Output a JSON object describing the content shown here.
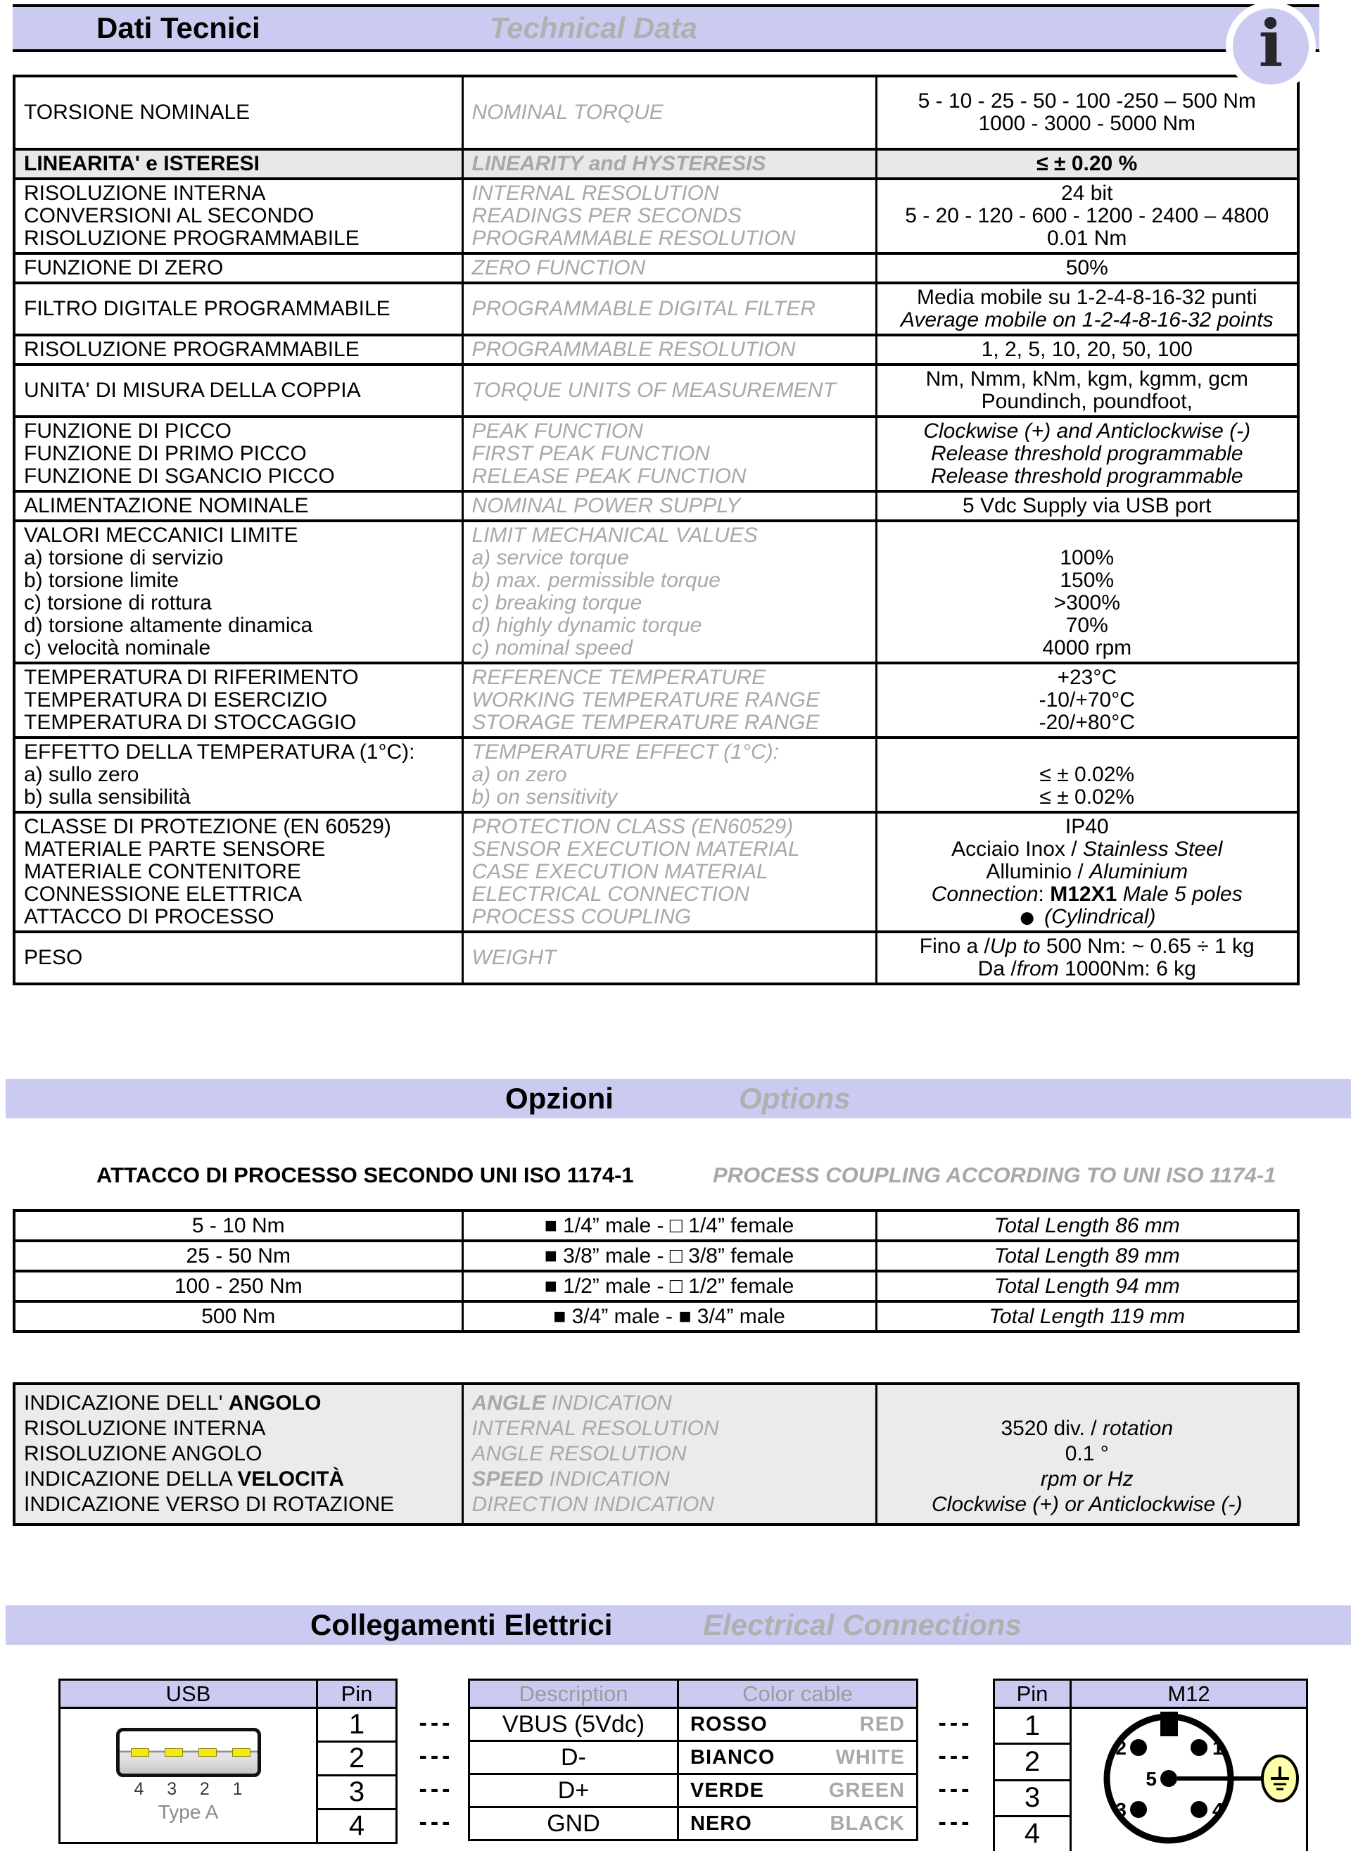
{
  "banner1": {
    "it": "Dati Tecnici",
    "en": "Technical Data"
  },
  "info_icon": {
    "glyph": "i"
  },
  "colors": {
    "accent_lavender": "#cbcbf1",
    "gray_text": "#a8a8a8",
    "row_gray": "#e8e8e8",
    "contact_yellow": "#f3ea0f",
    "ground_yellow": "#ffffa8"
  },
  "main_table": {
    "rows": [
      {
        "va": "m",
        "h": 104,
        "it": [
          "TORSIONE NOMINALE"
        ],
        "en": [
          "NOMINAL TORQUE"
        ],
        "val": [
          "5 - 10 - 25 - 50 - 100 -250 – 500 Nm",
          "1000 - 3000 - 5000 Nm"
        ]
      },
      {
        "va": "m",
        "bg": true,
        "it": [
          [
            {
              "t": "LINEARITA' e ISTERESI",
              "s": "b"
            }
          ]
        ],
        "en": [
          [
            {
              "t": "LINEARITY and HYSTERESIS",
              "s": "b"
            }
          ]
        ],
        "val": [
          [
            {
              "t": "≤ ± 0.20 %",
              "s": "b"
            }
          ]
        ]
      },
      {
        "va": "t",
        "it": [
          "RISOLUZIONE INTERNA",
          "CONVERSIONI AL SECONDO",
          "RISOLUZIONE PROGRAMMABILE"
        ],
        "en": [
          "INTERNAL RESOLUTION",
          "READINGS PER SECONDS",
          "PROGRAMMABLE RESOLUTION"
        ],
        "val": [
          "24 bit",
          "5 - 20 - 120 - 600 - 1200 - 2400 – 4800",
          "0.01 Nm"
        ]
      },
      {
        "va": "m",
        "it": [
          "FUNZIONE DI ZERO"
        ],
        "en": [
          "ZERO FUNCTION"
        ],
        "val": [
          "50%"
        ]
      },
      {
        "va": "m",
        "it": [
          "FILTRO DIGITALE PROGRAMMABILE"
        ],
        "en": [
          "PROGRAMMABLE DIGITAL FILTER"
        ],
        "val": [
          "Media mobile su 1-2-4-8-16-32 punti",
          [
            {
              "t": "Average mobile on 1-2-4-8-16-32 points",
              "s": "i"
            }
          ]
        ]
      },
      {
        "va": "m",
        "it": [
          "RISOLUZIONE PROGRAMMABILE"
        ],
        "en": [
          "PROGRAMMABLE RESOLUTION"
        ],
        "val": [
          "1, 2, 5, 10, 20, 50, 100"
        ]
      },
      {
        "va": "m",
        "it": [
          "UNITA' DI MISURA DELLA COPPIA"
        ],
        "en": [
          "TORQUE UNITS OF MEASUREMENT"
        ],
        "val": [
          "Nm, Nmm, kNm, kgm, kgmm, gcm",
          "Poundinch, poundfoot,"
        ]
      },
      {
        "va": "t",
        "it": [
          "FUNZIONE DI PICCO",
          "FUNZIONE DI PRIMO PICCO",
          "FUNZIONE DI SGANCIO PICCO"
        ],
        "en": [
          "PEAK FUNCTION",
          "FIRST PEAK FUNCTION",
          "RELEASE PEAK FUNCTION"
        ],
        "val": [
          [
            {
              "t": "Clockwise (+) and Anticlockwise (-)",
              "s": "i"
            }
          ],
          [
            {
              "t": "Release threshold programmable",
              "s": "i"
            }
          ],
          [
            {
              "t": "Release threshold programmable",
              "s": "i"
            }
          ]
        ]
      },
      {
        "va": "m",
        "it": [
          "ALIMENTAZIONE NOMINALE"
        ],
        "en": [
          "NOMINAL POWER SUPPLY"
        ],
        "val": [
          "5 Vdc Supply via USB port"
        ]
      },
      {
        "va": "t",
        "it": [
          "VALORI MECCANICI LIMITE",
          "a) torsione di servizio",
          "b) torsione limite",
          "c) torsione di rottura",
          "d) torsione altamente dinamica",
          "c) velocità nominale"
        ],
        "en": [
          "LIMIT MECHANICAL VALUES",
          "a) service torque",
          "b) max. permissible torque",
          "c) breaking torque",
          "d) highly dynamic torque",
          "c) nominal speed"
        ],
        "val": [
          "",
          "100%",
          "150%",
          ">300%",
          "70%",
          "4000 rpm"
        ]
      },
      {
        "va": "t",
        "it": [
          "TEMPERATURA DI RIFERIMENTO",
          "TEMPERATURA DI ESERCIZIO",
          "TEMPERATURA DI STOCCAGGIO"
        ],
        "en": [
          "REFERENCE TEMPERATURE",
          "WORKING TEMPERATURE RANGE",
          "STORAGE TEMPERATURE RANGE"
        ],
        "val": [
          "+23°C",
          "-10/+70°C",
          "-20/+80°C"
        ]
      },
      {
        "va": "t",
        "it": [
          "EFFETTO DELLA TEMPERATURA (1°C):",
          "a) sullo zero",
          "b) sulla sensibilità"
        ],
        "en": [
          "TEMPERATURE EFFECT (1°C):",
          "a) on zero",
          "b) on sensitivity"
        ],
        "val": [
          "",
          "≤ ± 0.02%",
          "≤ ± 0.02%"
        ]
      },
      {
        "va": "t",
        "it": [
          "CLASSE DI PROTEZIONE (EN 60529)",
          "MATERIALE PARTE SENSORE",
          "MATERIALE CONTENITORE",
          "CONNESSIONE ELETTRICA",
          "ATTACCO DI PROCESSO"
        ],
        "en": [
          "PROTECTION CLASS (EN60529)",
          "SENSOR EXECUTION MATERIAL",
          "CASE EXECUTION MATERIAL",
          "ELECTRICAL CONNECTION",
          "PROCESS COUPLING"
        ],
        "val": [
          "IP40",
          [
            {
              "t": "Acciaio Inox / "
            },
            {
              "t": "Stainless Steel",
              "s": "i"
            }
          ],
          [
            {
              "t": "Alluminio / "
            },
            {
              "t": "Aluminium",
              "s": "i"
            }
          ],
          [
            {
              "t": "Connection",
              "s": "i"
            },
            {
              "t": ": "
            },
            {
              "t": "M12X1",
              "s": "b"
            },
            {
              "t": " "
            },
            {
              "t": "Male 5 poles",
              "s": "i"
            }
          ],
          [
            {
              "t": "● ",
              "s": "d"
            },
            {
              "t": "(Cylindrical)",
              "s": "i"
            }
          ]
        ]
      },
      {
        "va": "t",
        "it": [
          "PESO"
        ],
        "en": [
          "WEIGHT"
        ],
        "val": [
          [
            {
              "t": "Fino a /"
            },
            {
              "t": "Up to",
              "s": "i"
            },
            {
              "t": " 500 Nm: ~ 0.65 ÷ 1 kg"
            }
          ],
          [
            {
              "t": "Da /"
            },
            {
              "t": "from",
              "s": "i"
            },
            {
              "t": " 1000Nm: 6 kg"
            }
          ]
        ]
      }
    ]
  },
  "options_banner": {
    "it": "Opzioni",
    "en": "Options"
  },
  "coupling_heading": {
    "it": "ATTACCO DI PROCESSO SECONDO UNI ISO 1174-1",
    "en": "PROCESS COUPLING ACCORDING TO UNI ISO 1174-1"
  },
  "coupling_table": {
    "rows": [
      {
        "range": "5 - 10 Nm",
        "fitting": "■ 1/4” male - □ 1/4” female",
        "length": "Total Length 86 mm"
      },
      {
        "range": "25 - 50 Nm",
        "fitting": "■ 3/8” male - □ 3/8” female",
        "length": "Total Length 89 mm"
      },
      {
        "range": "100 - 250 Nm",
        "fitting": "■ 1/2” male - □ 1/2” female",
        "length": "Total Length 94 mm"
      },
      {
        "range": "500 Nm",
        "fitting": "■ 3/4” male - ■ 3/4” male",
        "length": "Total Length 119 mm"
      }
    ]
  },
  "angle_table": {
    "rows": [
      {
        "va": "t",
        "it": [
          [
            {
              "t": "INDICAZIONE DELL' "
            },
            {
              "t": "ANGOLO",
              "s": "b"
            }
          ],
          "RISOLUZIONE INTERNA",
          "RISOLUZIONE ANGOLO",
          [
            {
              "t": "INDICAZIONE DELLA "
            },
            {
              "t": "VELOCITÀ",
              "s": "b"
            }
          ],
          "INDICAZIONE VERSO DI ROTAZIONE"
        ],
        "en": [
          [
            {
              "t": "ANGLE",
              "s": "b"
            },
            {
              "t": " INDICATION"
            }
          ],
          "INTERNAL RESOLUTION",
          "ANGLE RESOLUTION",
          [
            {
              "t": "SPEED",
              "s": "b"
            },
            {
              "t": " INDICATION"
            }
          ],
          "DIRECTION INDICATION"
        ],
        "val": [
          "",
          [
            {
              "t": "3520 div. / "
            },
            {
              "t": "rotation",
              "s": "i"
            }
          ],
          "0.1 °",
          [
            {
              "t": "rpm or Hz",
              "s": "i"
            }
          ],
          [
            {
              "t": "Clockwise (+) or Anticlockwise (-)",
              "s": "i"
            }
          ]
        ]
      }
    ]
  },
  "connections_banner": {
    "it": "Collegamenti Elettrici",
    "en": "Electrical Connections"
  },
  "connections": {
    "dash": "---",
    "usb": {
      "title": "USB",
      "pin_header": "Pin",
      "pins": [
        "1",
        "2",
        "3",
        "4"
      ],
      "contact_numbers": [
        "4",
        "3",
        "2",
        "1"
      ],
      "type_label": "Type A"
    },
    "cable": {
      "desc_header": "Description",
      "color_header": "Color cable",
      "rows": [
        {
          "description": "VBUS (5Vdc)",
          "it": "ROSSO",
          "en": "RED"
        },
        {
          "description": "D-",
          "it": "BIANCO",
          "en": "WHITE"
        },
        {
          "description": "D+",
          "it": "VERDE",
          "en": "GREEN"
        },
        {
          "description": "GND",
          "it": "NERO",
          "en": "BLACK"
        }
      ]
    },
    "m12": {
      "pin_header": "Pin",
      "title": "M12",
      "pins": [
        "1",
        "2",
        "3",
        "4"
      ],
      "diagram_pins": [
        "1",
        "2",
        "3",
        "4",
        "5"
      ]
    }
  }
}
